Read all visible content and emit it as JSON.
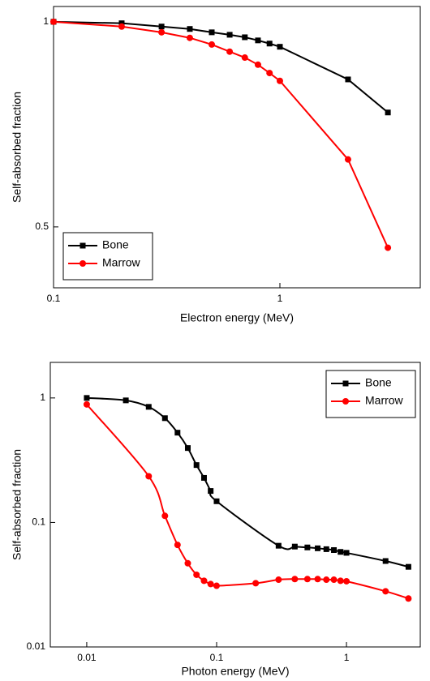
{
  "chart_data": [
    {
      "type": "line",
      "xlabel": "Electron energy (MeV)",
      "ylabel": "Self-absorbed fraction",
      "log_x": true,
      "log_y": true,
      "legend": "lower left",
      "xlim": [
        0.1,
        4.17
      ],
      "ylim": [
        0.407,
        1.053
      ],
      "xticks": [
        0.1,
        1
      ],
      "yticks": [
        0.5,
        1
      ],
      "series": [
        {
          "name": "Bone",
          "color": "#000000",
          "marker": "square",
          "x": [
            0.1,
            0.2,
            0.3,
            0.4,
            0.5,
            0.6,
            0.7,
            0.8,
            0.9,
            1,
            2,
            3
          ],
          "values": [
            1,
            0.995,
            0.984,
            0.976,
            0.965,
            0.957,
            0.949,
            0.939,
            0.929,
            0.919,
            0.823,
            0.736
          ]
        },
        {
          "name": "Marrow",
          "color": "#ff0000",
          "marker": "circle",
          "x": [
            0.1,
            0.2,
            0.3,
            0.4,
            0.5,
            0.6,
            0.7,
            0.8,
            0.9,
            1,
            2,
            3
          ],
          "values": [
            1,
            0.984,
            0.965,
            0.947,
            0.926,
            0.904,
            0.886,
            0.865,
            0.841,
            0.819,
            0.628,
            0.466
          ]
        }
      ]
    },
    {
      "type": "line",
      "xlabel": "Photon energy (MeV)",
      "ylabel": "Self-absorbed fraction",
      "log_x": true,
      "log_y": true,
      "legend": "upper right",
      "smooth": true,
      "xlim": [
        0.00524,
        3.7
      ],
      "ylim": [
        0.01,
        1.93
      ],
      "xticks": [
        0.01,
        0.1,
        1
      ],
      "yticks": [
        0.01,
        0.1,
        1
      ],
      "series": [
        {
          "name": "Bone",
          "color": "#000000",
          "marker": "square",
          "x": [
            0.01,
            0.02,
            0.03,
            0.04,
            0.05,
            0.06,
            0.07,
            0.08,
            0.09,
            0.1,
            0.3,
            0.4,
            0.5,
            0.6,
            0.7,
            0.8,
            0.9,
            1,
            2,
            3
          ],
          "values": [
            1,
            0.956,
            0.848,
            0.688,
            0.526,
            0.396,
            0.289,
            0.228,
            0.179,
            0.148,
            0.065,
            0.064,
            0.063,
            0.062,
            0.061,
            0.06,
            0.058,
            0.057,
            0.049,
            0.044
          ]
        },
        {
          "name": "Marrow",
          "color": "#ff0000",
          "marker": "circle",
          "x": [
            0.01,
            0.03,
            0.04,
            0.05,
            0.06,
            0.07,
            0.08,
            0.09,
            0.1,
            0.2,
            0.3,
            0.4,
            0.5,
            0.6,
            0.7,
            0.8,
            0.9,
            1,
            2,
            3
          ],
          "values": [
            0.887,
            0.235,
            0.113,
            0.066,
            0.047,
            0.038,
            0.034,
            0.032,
            0.031,
            0.0325,
            0.0347,
            0.0351,
            0.0351,
            0.0351,
            0.0347,
            0.0347,
            0.034,
            0.0337,
            0.028,
            0.0245
          ]
        }
      ]
    }
  ]
}
